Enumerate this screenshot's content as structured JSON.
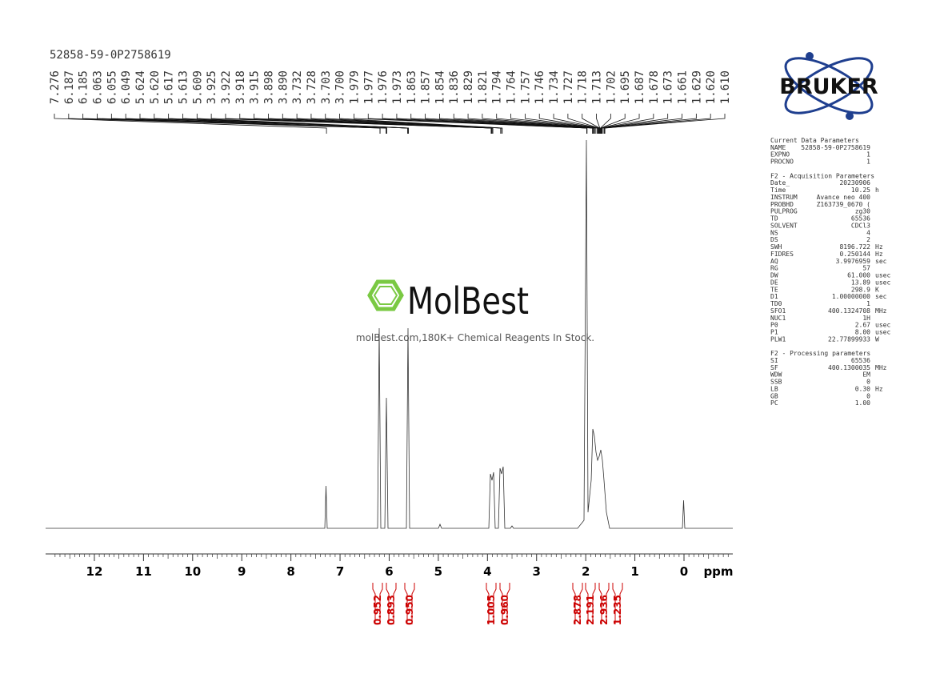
{
  "title": "52858-59-0P2758619",
  "peaks": [
    "7.276",
    "6.187",
    "6.185",
    "6.063",
    "6.055",
    "6.049",
    "5.624",
    "5.620",
    "5.617",
    "5.613",
    "5.609",
    "3.925",
    "3.922",
    "3.918",
    "3.915",
    "3.898",
    "3.890",
    "3.732",
    "3.728",
    "3.703",
    "3.700",
    "1.979",
    "1.977",
    "1.976",
    "1.973",
    "1.863",
    "1.857",
    "1.854",
    "1.836",
    "1.829",
    "1.821",
    "1.794",
    "1.764",
    "1.757",
    "1.746",
    "1.734",
    "1.727",
    "1.718",
    "1.713",
    "1.702",
    "1.695",
    "1.687",
    "1.678",
    "1.673",
    "1.661",
    "1.629",
    "1.620",
    "1.610"
  ],
  "axis": {
    "ticks": [
      12,
      11,
      10,
      9,
      8,
      7,
      6,
      5,
      4,
      3,
      2,
      1,
      0
    ],
    "unit": "ppm"
  },
  "integrals": [
    "0.952",
    "0.893",
    "0.950",
    "1.005",
    "0.960",
    "2.878",
    "2.191",
    "2.936",
    "1.235"
  ],
  "watermark": {
    "brand": "MolBest",
    "tagline": "molBest.com,180K+ Chemical Reagents In Stock."
  },
  "logo": "BRUKER",
  "parameters": [
    {
      "title": "Current Data Parameters",
      "rows": [
        [
          "NAME",
          "52858-59-0P2758619"
        ],
        [
          "EXPNO",
          "1"
        ],
        [
          "PROCNO",
          "1"
        ]
      ]
    },
    {
      "title": "F2 - Acquisition Parameters",
      "rows": [
        [
          "Date_",
          "20230906"
        ],
        [
          "Time",
          "10.25",
          "h"
        ],
        [
          "INSTRUM",
          "Avance neo 400"
        ],
        [
          "PROBHD",
          "Z163739_0670 ("
        ],
        [
          "PULPROG",
          "zg30"
        ],
        [
          "TD",
          "65536"
        ],
        [
          "SOLVENT",
          "CDCl3"
        ],
        [
          "NS",
          "4"
        ],
        [
          "DS",
          "2"
        ],
        [
          "SWH",
          "8196.722",
          "Hz"
        ],
        [
          "FIDRES",
          "0.250144",
          "Hz"
        ],
        [
          "AQ",
          "3.9976959",
          "sec"
        ],
        [
          "RG",
          "57"
        ],
        [
          "DW",
          "61.000",
          "usec"
        ],
        [
          "DE",
          "13.89",
          "usec"
        ],
        [
          "TE",
          "298.9",
          "K"
        ],
        [
          "D1",
          "1.00000000",
          "sec"
        ],
        [
          "TD0",
          "1"
        ],
        [
          "SFO1",
          "400.1324708",
          "MHz"
        ],
        [
          "NUC1",
          "1H"
        ],
        [
          "P0",
          "2.67",
          "usec"
        ],
        [
          "P1",
          "8.00",
          "usec"
        ],
        [
          "PLW1",
          "22.77899933",
          "W"
        ]
      ]
    },
    {
      "title": "F2 - Processing parameters",
      "rows": [
        [
          "SI",
          "65536"
        ],
        [
          "SF",
          "400.1300035",
          "MHz"
        ],
        [
          "WDW",
          "EM"
        ],
        [
          "SSB",
          "0"
        ],
        [
          "LB",
          "0.30",
          "Hz"
        ],
        [
          "GB",
          "0"
        ],
        [
          "PC",
          "1.00"
        ]
      ]
    }
  ]
}
